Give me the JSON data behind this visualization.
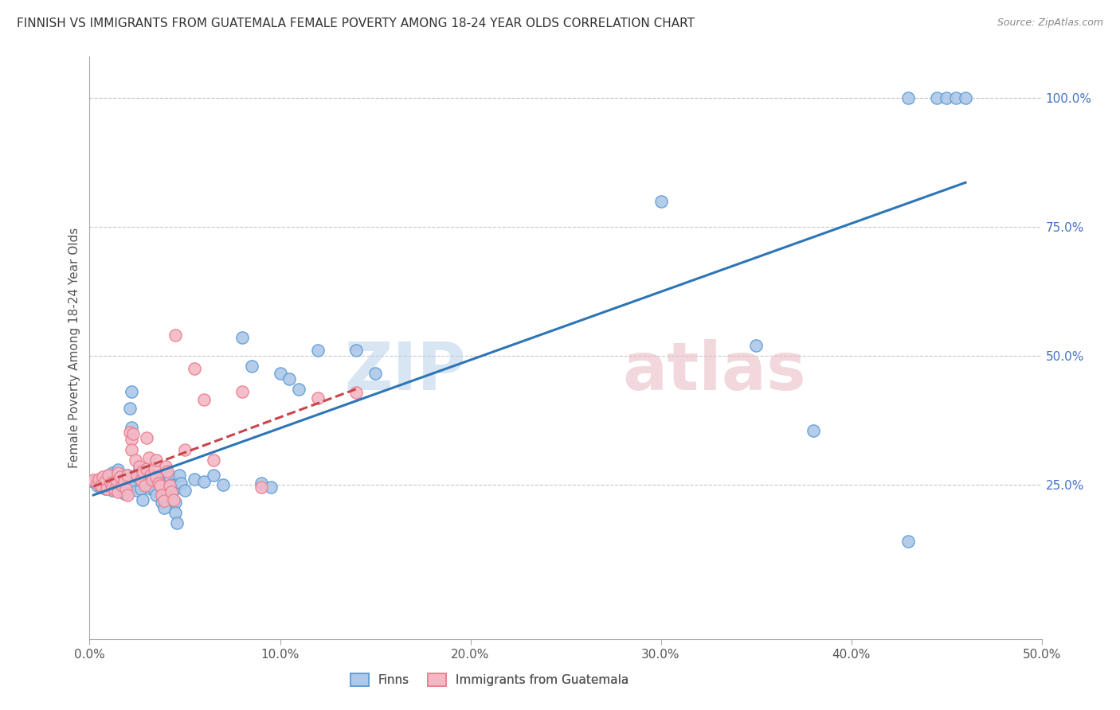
{
  "title": "FINNISH VS IMMIGRANTS FROM GUATEMALA FEMALE POVERTY AMONG 18-24 YEAR OLDS CORRELATION CHART",
  "source": "Source: ZipAtlas.com",
  "ylabel": "Female Poverty Among 18-24 Year Olds",
  "xlim": [
    0.0,
    0.5
  ],
  "ylim": [
    -0.05,
    1.08
  ],
  "xtick_labels": [
    "0.0%",
    "10.0%",
    "20.0%",
    "30.0%",
    "40.0%",
    "50.0%"
  ],
  "xtick_values": [
    0.0,
    0.1,
    0.2,
    0.3,
    0.4,
    0.5
  ],
  "ytick_labels": [
    "25.0%",
    "50.0%",
    "75.0%",
    "100.0%"
  ],
  "ytick_values": [
    0.25,
    0.5,
    0.75,
    1.0
  ],
  "finns_color": "#5b9bd5",
  "immigrants_color": "#ed7d8b",
  "finns_color_fill": "#adc8e8",
  "immigrants_color_fill": "#f2b8c6",
  "finns_line_color": "#2e75b6",
  "immigrants_line_color": "#c9454e",
  "background_color": "#ffffff",
  "grid_color": "#c8c8c8",
  "finns_scatter": [
    [
      0.002,
      0.255
    ],
    [
      0.004,
      0.248
    ],
    [
      0.005,
      0.252
    ],
    [
      0.006,
      0.245
    ],
    [
      0.007,
      0.258
    ],
    [
      0.008,
      0.242
    ],
    [
      0.009,
      0.26
    ],
    [
      0.01,
      0.25
    ],
    [
      0.01,
      0.268
    ],
    [
      0.011,
      0.244
    ],
    [
      0.012,
      0.238
    ],
    [
      0.012,
      0.272
    ],
    [
      0.013,
      0.255
    ],
    [
      0.014,
      0.265
    ],
    [
      0.015,
      0.245
    ],
    [
      0.015,
      0.278
    ],
    [
      0.016,
      0.24
    ],
    [
      0.017,
      0.26
    ],
    [
      0.018,
      0.252
    ],
    [
      0.018,
      0.232
    ],
    [
      0.02,
      0.268
    ],
    [
      0.021,
      0.398
    ],
    [
      0.022,
      0.36
    ],
    [
      0.022,
      0.43
    ],
    [
      0.023,
      0.252
    ],
    [
      0.024,
      0.248
    ],
    [
      0.025,
      0.265
    ],
    [
      0.025,
      0.238
    ],
    [
      0.026,
      0.278
    ],
    [
      0.027,
      0.242
    ],
    [
      0.028,
      0.255
    ],
    [
      0.028,
      0.22
    ],
    [
      0.03,
      0.27
    ],
    [
      0.03,
      0.25
    ],
    [
      0.031,
      0.268
    ],
    [
      0.032,
      0.242
    ],
    [
      0.033,
      0.258
    ],
    [
      0.034,
      0.238
    ],
    [
      0.035,
      0.265
    ],
    [
      0.035,
      0.23
    ],
    [
      0.036,
      0.252
    ],
    [
      0.037,
      0.248
    ],
    [
      0.038,
      0.215
    ],
    [
      0.039,
      0.205
    ],
    [
      0.04,
      0.268
    ],
    [
      0.04,
      0.245
    ],
    [
      0.041,
      0.23
    ],
    [
      0.042,
      0.265
    ],
    [
      0.043,
      0.25
    ],
    [
      0.044,
      0.238
    ],
    [
      0.045,
      0.215
    ],
    [
      0.045,
      0.195
    ],
    [
      0.046,
      0.175
    ],
    [
      0.047,
      0.268
    ],
    [
      0.048,
      0.252
    ],
    [
      0.05,
      0.238
    ],
    [
      0.055,
      0.26
    ],
    [
      0.06,
      0.255
    ],
    [
      0.065,
      0.268
    ],
    [
      0.07,
      0.25
    ],
    [
      0.08,
      0.535
    ],
    [
      0.085,
      0.48
    ],
    [
      0.09,
      0.252
    ],
    [
      0.095,
      0.245
    ],
    [
      0.1,
      0.465
    ],
    [
      0.105,
      0.455
    ],
    [
      0.11,
      0.435
    ],
    [
      0.12,
      0.51
    ],
    [
      0.14,
      0.51
    ],
    [
      0.15,
      0.465
    ],
    [
      0.3,
      0.8
    ],
    [
      0.35,
      0.52
    ],
    [
      0.38,
      0.355
    ],
    [
      0.43,
      0.14
    ],
    [
      0.43,
      1.0
    ],
    [
      0.445,
      1.0
    ],
    [
      0.45,
      1.0
    ],
    [
      0.455,
      1.0
    ],
    [
      0.46,
      1.0
    ]
  ],
  "immigrants_scatter": [
    [
      0.002,
      0.258
    ],
    [
      0.004,
      0.252
    ],
    [
      0.005,
      0.26
    ],
    [
      0.006,
      0.248
    ],
    [
      0.007,
      0.265
    ],
    [
      0.008,
      0.255
    ],
    [
      0.009,
      0.242
    ],
    [
      0.01,
      0.268
    ],
    [
      0.011,
      0.252
    ],
    [
      0.012,
      0.245
    ],
    [
      0.013,
      0.24
    ],
    [
      0.014,
      0.258
    ],
    [
      0.015,
      0.272
    ],
    [
      0.015,
      0.235
    ],
    [
      0.016,
      0.265
    ],
    [
      0.017,
      0.248
    ],
    [
      0.018,
      0.255
    ],
    [
      0.019,
      0.242
    ],
    [
      0.02,
      0.268
    ],
    [
      0.02,
      0.23
    ],
    [
      0.021,
      0.352
    ],
    [
      0.022,
      0.338
    ],
    [
      0.022,
      0.318
    ],
    [
      0.023,
      0.348
    ],
    [
      0.024,
      0.298
    ],
    [
      0.025,
      0.268
    ],
    [
      0.026,
      0.285
    ],
    [
      0.027,
      0.258
    ],
    [
      0.028,
      0.275
    ],
    [
      0.029,
      0.248
    ],
    [
      0.03,
      0.34
    ],
    [
      0.03,
      0.28
    ],
    [
      0.031,
      0.302
    ],
    [
      0.032,
      0.268
    ],
    [
      0.033,
      0.258
    ],
    [
      0.034,
      0.28
    ],
    [
      0.035,
      0.298
    ],
    [
      0.035,
      0.265
    ],
    [
      0.036,
      0.252
    ],
    [
      0.037,
      0.248
    ],
    [
      0.038,
      0.23
    ],
    [
      0.039,
      0.218
    ],
    [
      0.04,
      0.285
    ],
    [
      0.041,
      0.275
    ],
    [
      0.042,
      0.248
    ],
    [
      0.043,
      0.235
    ],
    [
      0.044,
      0.22
    ],
    [
      0.045,
      0.54
    ],
    [
      0.05,
      0.318
    ],
    [
      0.055,
      0.475
    ],
    [
      0.06,
      0.415
    ],
    [
      0.065,
      0.298
    ],
    [
      0.08,
      0.43
    ],
    [
      0.09,
      0.245
    ],
    [
      0.12,
      0.418
    ],
    [
      0.14,
      0.428
    ]
  ]
}
